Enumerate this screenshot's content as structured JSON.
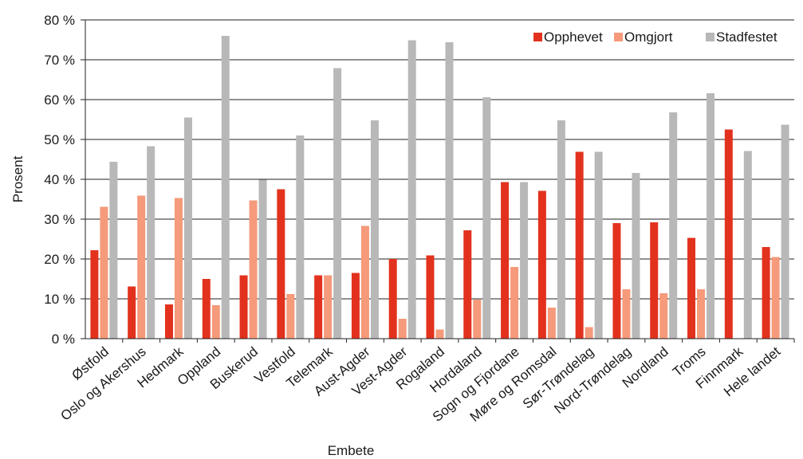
{
  "chart_data": {
    "type": "bar",
    "xlabel": "Embete",
    "ylabel": "Prosent",
    "ylim": [
      0,
      80
    ],
    "yticks": [
      0,
      10,
      20,
      30,
      40,
      50,
      60,
      70,
      80
    ],
    "ytick_labels": [
      "0 %",
      "10 %",
      "20 %",
      "30 %",
      "40 %",
      "50 %",
      "60 %",
      "70 %",
      "80 %"
    ],
    "grid": "horizontal",
    "legend_position": "top-right",
    "categories": [
      "Østfold",
      "Oslo og Akershus",
      "Hedmark",
      "Oppland",
      "Buskerud",
      "Vestfold",
      "Telemark",
      "Aust-Agder",
      "Vest-Agder",
      "Rogaland",
      "Hordaland",
      "Sogn og Fjordane",
      "Møre og Romsdal",
      "Sør-Trøndelag",
      "Nord-Trøndelag",
      "Nordland",
      "Troms",
      "Finnmark",
      "Hele landet"
    ],
    "series": [
      {
        "name": "Opphevet",
        "color": "#e2321e",
        "values": [
          22.2,
          13.1,
          8.6,
          15.0,
          15.9,
          37.5,
          15.9,
          16.5,
          20.0,
          20.9,
          27.2,
          39.3,
          37.1,
          46.9,
          29.0,
          29.2,
          25.3,
          52.5,
          23.0
        ]
      },
      {
        "name": "Omgjort",
        "color": "#f59a7a",
        "values": [
          33.1,
          35.9,
          35.3,
          8.4,
          34.7,
          11.2,
          15.9,
          28.3,
          5.0,
          2.3,
          9.8,
          18.0,
          7.8,
          2.9,
          12.4,
          11.4,
          12.4,
          0,
          20.5
        ]
      },
      {
        "name": "Stadfestet",
        "color": "#b8b8b8",
        "values": [
          44.4,
          48.3,
          55.5,
          76.0,
          39.9,
          51.0,
          67.9,
          54.8,
          74.9,
          74.4,
          60.6,
          39.3,
          54.8,
          46.9,
          41.6,
          56.8,
          61.6,
          47.1,
          53.7
        ]
      }
    ]
  }
}
